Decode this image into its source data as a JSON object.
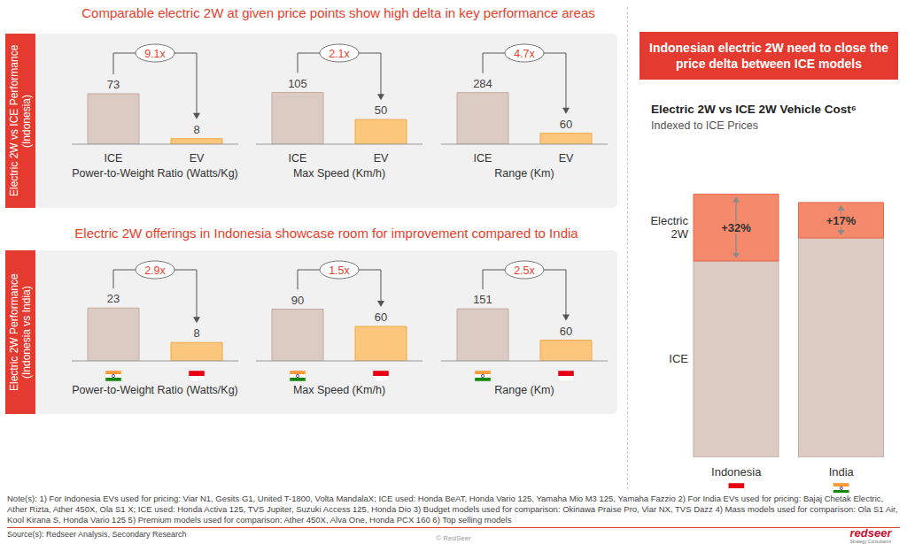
{
  "top_panel": {
    "title": "Comparable electric 2W at given price points show high delta in key performance areas",
    "side_label": "Electric 2W vs ICE Performance (Indonesia)"
  },
  "bottom_panel": {
    "title": "Electric 2W offerings in Indonesia showcase room for improvement compared to India",
    "side_label": "Electric 2W Performance (Indonesia vs India)"
  },
  "right_panel": {
    "banner": "Indonesian electric 2W need to close the price delta between ICE models"
  },
  "chart_data": [
    {
      "type": "bar",
      "xlabel": "Power-to-Weight Ratio (Watts/Kg)",
      "categories": [
        "ICE",
        "EV"
      ],
      "values": [
        73,
        8
      ],
      "colors": [
        "#dccbc2",
        "#fcc77d"
      ],
      "ylim": [
        0,
        100
      ],
      "tick_labels": "x",
      "data_labels": true,
      "annotation": "9.1x"
    },
    {
      "type": "bar",
      "xlabel": "Max Speed (Km/h)",
      "categories": [
        "ICE",
        "EV"
      ],
      "values": [
        105,
        50
      ],
      "colors": [
        "#dccbc2",
        "#fcc77d"
      ],
      "ylim": [
        0,
        140
      ],
      "tick_labels": "x",
      "data_labels": true,
      "annotation": "2.1x"
    },
    {
      "type": "bar",
      "xlabel": "Range (Km)",
      "categories": [
        "ICE",
        "EV"
      ],
      "values": [
        284,
        60
      ],
      "colors": [
        "#dccbc2",
        "#fcc77d"
      ],
      "ylim": [
        0,
        380
      ],
      "tick_labels": "x",
      "data_labels": true,
      "annotation": "4.7x"
    },
    {
      "type": "bar",
      "xlabel": "Power-to-Weight Ratio (Watts/Kg)",
      "categories": [
        null,
        null
      ],
      "values": [
        23,
        8
      ],
      "colors": [
        "#dccbc2",
        "#fcc77d"
      ],
      "ylim": [
        0,
        30
      ],
      "tick_labels": false,
      "data_labels": true,
      "annotation": "2.9x"
    },
    {
      "type": "bar",
      "xlabel": "Max Speed (Km/h)",
      "categories": [
        null,
        null
      ],
      "values": [
        90,
        60
      ],
      "colors": [
        "#dccbc2",
        "#fcc77d"
      ],
      "ylim": [
        0,
        120
      ],
      "tick_labels": false,
      "data_labels": true,
      "annotation": "1.5x"
    },
    {
      "type": "bar",
      "xlabel": "Range (Km)",
      "categories": [
        null,
        null
      ],
      "values": [
        151,
        60
      ],
      "colors": [
        "#dccbc2",
        "#fcc77d"
      ],
      "ylim": [
        0,
        200
      ],
      "tick_labels": false,
      "data_labels": true,
      "annotation": "2.5x"
    },
    {
      "type": "bar",
      "stacked": true,
      "title": "Electric 2W vs ICE 2W Vehicle Cost⁶",
      "subtitle": "Indexed to ICE Prices",
      "categories": [
        "Indonesia",
        "India"
      ],
      "series": [
        {
          "name": "ICE",
          "color": "#dccbc2",
          "values": [
            94,
            105
          ]
        },
        {
          "name": "Electric 2W",
          "color": "#f4896b",
          "values": [
            32,
            17
          ],
          "value_labels": [
            "+32%",
            "+17%"
          ],
          "data_labels": true
        }
      ],
      "ylim": [
        0,
        130
      ],
      "tick_labels": "x"
    }
  ],
  "note": "Note(s): 1) For Indonesia EVs used for pricing: Viar N1, Gesits G1, United T-1800, Volta MandalaX; ICE used: Honda BeAT, Honda Vario 125, Yamaha Mio M3 125, Yamaha Fazzio 2) For India EVs used for pricing: Bajaj Chetak Electric, Ather Rizta, Ather 450X, Ola S1 X; ICE used: Honda Activa 125, TVS Jupiter, Suzuki Access 125, Honda Dio 3) Budget models used for comparison: Okinawa Praise Pro, Viar NX, TVS Dazz 4) Mass models used for comparison: Ola S1 Air, Kool Kirana S, Honda Vario 125 5) Premium models used for comparison: Ather 450X, Alva One, Honda PCX 160 6) Top selling models",
  "source": "Source(s): Redseer Analysis, Secondary Research",
  "footer": "© RedSeer",
  "logo": "redseer",
  "logo_tagline": "Strategy Consultants"
}
